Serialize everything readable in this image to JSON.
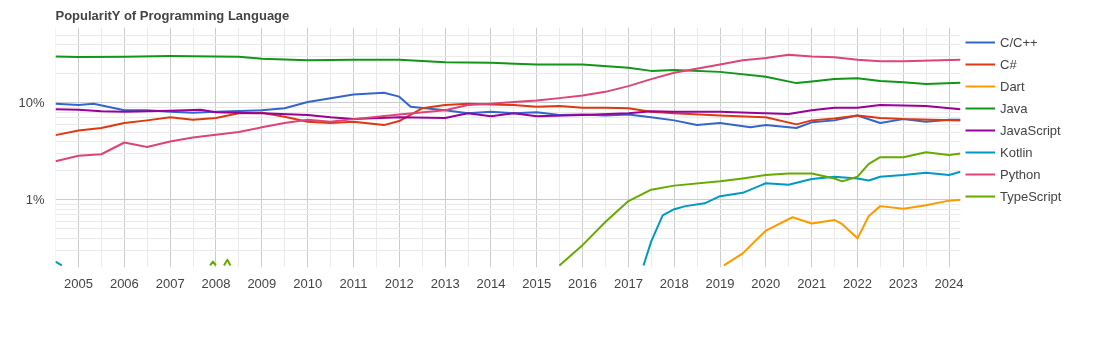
{
  "chart_data": {
    "type": "line",
    "title": "PopularitY of Programming Language",
    "xlim": [
      "2004-07",
      "2024-04"
    ],
    "xticks": [
      "2005",
      "2006",
      "2007",
      "2008",
      "2009",
      "2010",
      "2011",
      "2012",
      "2013",
      "2014",
      "2015",
      "2016",
      "2017",
      "2018",
      "2019",
      "2020",
      "2021",
      "2022",
      "2023",
      "2024"
    ],
    "ylim": [
      0.2,
      60
    ],
    "log": true,
    "yticks": [
      {
        "value": 1,
        "label": "1%"
      },
      {
        "value": 10,
        "label": "10%"
      }
    ],
    "grid": true,
    "legend": "right",
    "line_style": "solid",
    "marker": "none",
    "series": [
      {
        "name": "C/C++",
        "color": "#3366cc",
        "x": [
          "2004-07",
          "2005-01",
          "2005-05",
          "2006-01",
          "2006-07",
          "2007-01",
          "2007-07",
          "2008-01",
          "2009-01",
          "2009-07",
          "2010-01",
          "2011-01",
          "2011-09",
          "2012-01",
          "2012-04",
          "2013-01",
          "2013-07",
          "2014-01",
          "2014-07",
          "2015-01",
          "2015-07",
          "2016-01",
          "2016-07",
          "2017-01",
          "2017-07",
          "2018-01",
          "2018-07",
          "2019-01",
          "2019-09",
          "2020-01",
          "2020-09",
          "2021-01",
          "2021-07",
          "2022-01",
          "2022-07",
          "2023-01",
          "2023-07",
          "2024-01",
          "2024-04"
        ],
        "values": [
          9.8,
          9.5,
          9.8,
          8.4,
          8.4,
          8.1,
          7.9,
          8.1,
          8.4,
          8.8,
          10.2,
          12.2,
          12.7,
          11.6,
          9.1,
          8.4,
          7.8,
          8.1,
          7.8,
          8.0,
          7.5,
          7.6,
          7.4,
          7.6,
          7.1,
          6.6,
          5.9,
          6.2,
          5.6,
          5.9,
          5.5,
          6.3,
          6.6,
          7.4,
          6.2,
          6.8,
          6.4,
          6.7,
          6.7
        ]
      },
      {
        "name": "C#",
        "color": "#dc3912",
        "x": [
          "2004-07",
          "2005-01",
          "2005-07",
          "2006-01",
          "2006-07",
          "2007-01",
          "2007-07",
          "2008-01",
          "2008-07",
          "2009-01",
          "2009-07",
          "2010-01",
          "2010-07",
          "2011-01",
          "2011-09",
          "2012-01",
          "2012-07",
          "2013-01",
          "2013-07",
          "2014-01",
          "2014-07",
          "2015-01",
          "2015-07",
          "2016-01",
          "2016-07",
          "2017-01",
          "2017-07",
          "2018-01",
          "2019-01",
          "2020-01",
          "2020-09",
          "2021-01",
          "2021-07",
          "2022-01",
          "2022-07",
          "2023-01",
          "2024-04"
        ],
        "values": [
          4.65,
          5.2,
          5.5,
          6.2,
          6.6,
          7.1,
          6.7,
          7.0,
          7.8,
          7.9,
          7.2,
          6.4,
          6.2,
          6.4,
          5.9,
          6.5,
          8.8,
          9.5,
          9.8,
          9.6,
          9.5,
          9.1,
          9.3,
          8.9,
          8.9,
          8.8,
          8.1,
          7.8,
          7.4,
          7.1,
          6.0,
          6.6,
          6.9,
          7.4,
          7.0,
          6.8,
          6.6
        ]
      },
      {
        "name": "Dart",
        "color": "#ff9900",
        "x": [
          "2019-02",
          "2019-07",
          "2020-01",
          "2020-08",
          "2021-01",
          "2021-07",
          "2021-09",
          "2022-01",
          "2022-04",
          "2022-07",
          "2023-01",
          "2023-07",
          "2024-01",
          "2024-04"
        ],
        "values": [
          0.21,
          0.28,
          0.48,
          0.66,
          0.57,
          0.62,
          0.56,
          0.4,
          0.68,
          0.86,
          0.81,
          0.88,
          0.98,
          1.0
        ]
      },
      {
        "name": "Java",
        "color": "#109618",
        "x": [
          "2004-07",
          "2005-01",
          "2006-01",
          "2007-01",
          "2008-01",
          "2008-07",
          "2009-01",
          "2010-01",
          "2011-01",
          "2012-01",
          "2013-01",
          "2014-01",
          "2015-01",
          "2016-01",
          "2017-01",
          "2017-07",
          "2018-01",
          "2019-01",
          "2020-01",
          "2020-09",
          "2021-01",
          "2021-07",
          "2022-01",
          "2022-07",
          "2023-01",
          "2023-07",
          "2024-04"
        ],
        "values": [
          30.2,
          29.8,
          30.0,
          30.4,
          30.2,
          30.0,
          28.5,
          27.6,
          27.9,
          27.9,
          26.3,
          25.9,
          24.9,
          24.9,
          23.1,
          21.4,
          21.9,
          20.9,
          18.6,
          16.0,
          16.6,
          17.6,
          18.0,
          16.8,
          16.3,
          15.7,
          16.1
        ]
      },
      {
        "name": "JavaScript",
        "color": "#990099",
        "x": [
          "2004-07",
          "2005-01",
          "2005-07",
          "2006-01",
          "2007-01",
          "2007-09",
          "2008-01",
          "2009-01",
          "2010-01",
          "2010-07",
          "2011-01",
          "2012-01",
          "2013-01",
          "2013-07",
          "2014-01",
          "2014-07",
          "2015-01",
          "2016-01",
          "2017-01",
          "2017-07",
          "2018-01",
          "2019-01",
          "2020-01",
          "2020-07",
          "2021-01",
          "2021-07",
          "2022-01",
          "2022-07",
          "2023-01",
          "2023-07",
          "2024-04"
        ],
        "values": [
          8.6,
          8.5,
          8.2,
          8.1,
          8.3,
          8.5,
          8.0,
          7.8,
          7.5,
          7.1,
          6.8,
          7.1,
          7.0,
          7.8,
          7.3,
          7.8,
          7.3,
          7.5,
          7.8,
          8.2,
          8.1,
          8.1,
          7.8,
          7.7,
          8.4,
          8.9,
          8.9,
          9.5,
          9.4,
          9.3,
          8.6
        ]
      },
      {
        "name": "Kotlin",
        "color": "#0099c6",
        "x": [
          "2004-07",
          "2004-08-20",
          "2010-01",
          "2017-05",
          "2017-07",
          "2017-10",
          "2018-01",
          "2018-04",
          "2018-09",
          "2019-01",
          "2019-07",
          "2020-01",
          "2020-07",
          "2021-01",
          "2021-07",
          "2022-01",
          "2022-04",
          "2022-07",
          "2023-01",
          "2023-07",
          "2024-01",
          "2024-04"
        ],
        "values": [
          0.23,
          0.21,
          null,
          0.21,
          0.37,
          0.69,
          0.8,
          0.86,
          0.92,
          1.09,
          1.18,
          1.48,
          1.43,
          1.64,
          1.73,
          1.66,
          1.58,
          1.73,
          1.8,
          1.9,
          1.8,
          1.95
        ]
      },
      {
        "name": "Python",
        "color": "#dd4477",
        "x": [
          "2004-07",
          "2005-01",
          "2005-07",
          "2006-01",
          "2006-07",
          "2007-01",
          "2007-07",
          "2008-01",
          "2008-07",
          "2009-01",
          "2009-07",
          "2010-01",
          "2010-07",
          "2011-01",
          "2012-01",
          "2013-01",
          "2013-07",
          "2014-01",
          "2014-07",
          "2015-01",
          "2015-07",
          "2016-01",
          "2016-07",
          "2017-01",
          "2017-07",
          "2018-01",
          "2019-01",
          "2019-07",
          "2020-01",
          "2020-07",
          "2021-01",
          "2021-07",
          "2022-01",
          "2022-07",
          "2023-01",
          "2024-04"
        ],
        "values": [
          2.5,
          2.85,
          2.95,
          3.9,
          3.5,
          4.0,
          4.4,
          4.7,
          5.0,
          5.6,
          6.2,
          6.7,
          6.4,
          6.8,
          7.6,
          8.4,
          9.5,
          9.8,
          10.2,
          10.6,
          11.2,
          11.9,
          13.0,
          14.9,
          17.6,
          20.5,
          24.9,
          27.5,
          29.0,
          31.4,
          30.2,
          29.6,
          27.9,
          26.9,
          26.9,
          27.9
        ]
      },
      {
        "name": "TypeScript",
        "color": "#66aa00",
        "x": [
          "2007-11-15",
          "2007-12-08",
          "2007-12-31",
          "2008-02-15",
          "2008-03-05",
          "2008-04-01",
          "2008-04-25",
          "2012-01",
          "2015-07",
          "2016-01",
          "2016-07",
          "2017-01",
          "2017-07",
          "2018-01",
          "2019-01",
          "2019-07",
          "2020-01",
          "2020-07",
          "2021-01",
          "2021-07",
          "2021-09",
          "2022-01",
          "2022-04",
          "2022-07",
          "2023-01",
          "2023-07",
          "2024-01",
          "2024-04"
        ],
        "values": [
          0.21,
          0.23,
          0.21,
          null,
          0.21,
          0.24,
          0.21,
          null,
          0.21,
          0.34,
          0.59,
          0.97,
          1.27,
          1.4,
          1.55,
          1.66,
          1.8,
          1.87,
          1.87,
          1.66,
          1.55,
          1.73,
          2.35,
          2.75,
          2.75,
          3.1,
          2.9,
          3.0
        ]
      }
    ]
  }
}
